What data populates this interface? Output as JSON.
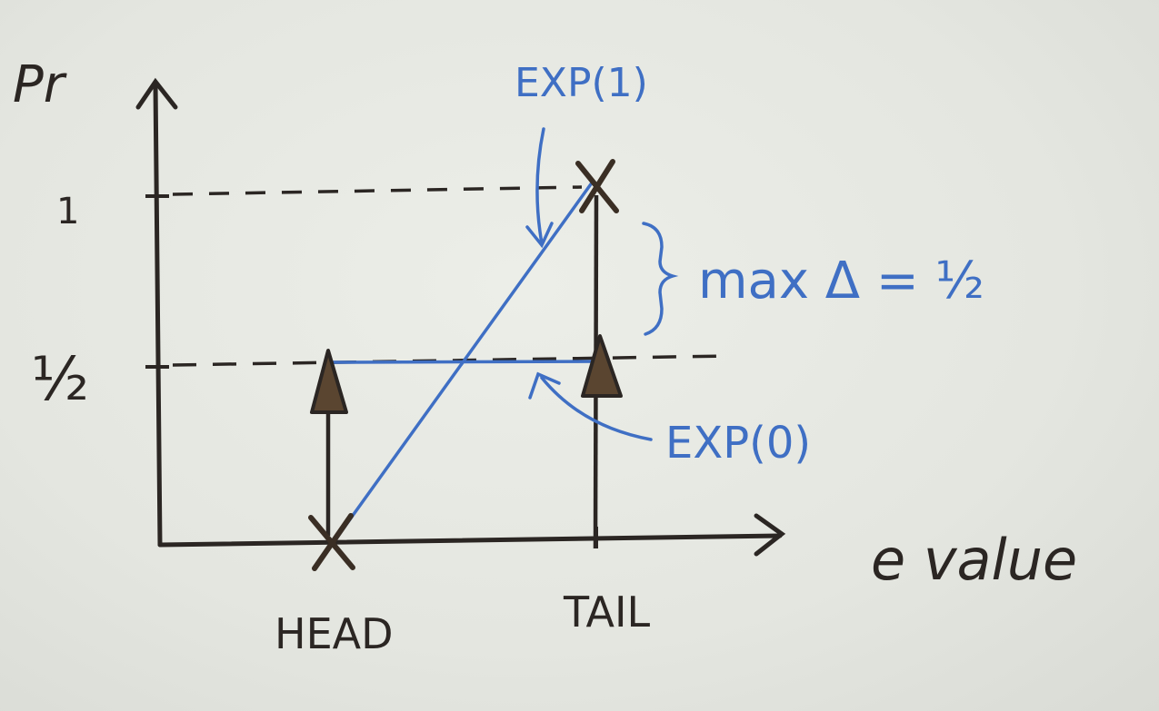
{
  "axes": {
    "y_label": "Pr",
    "x_label": "e value",
    "y_tick_one": "1",
    "y_tick_half": "½"
  },
  "categories": {
    "head": "HEAD",
    "tail": "TAIL"
  },
  "annotations": {
    "exp1": "EXP(1)",
    "exp0": "EXP(0)",
    "max_delta": "max Δ = ½"
  },
  "colors": {
    "ink_dark": "#2b2623",
    "ink_blue": "#3f6fc4",
    "marker_fill": "#5a4530"
  }
}
